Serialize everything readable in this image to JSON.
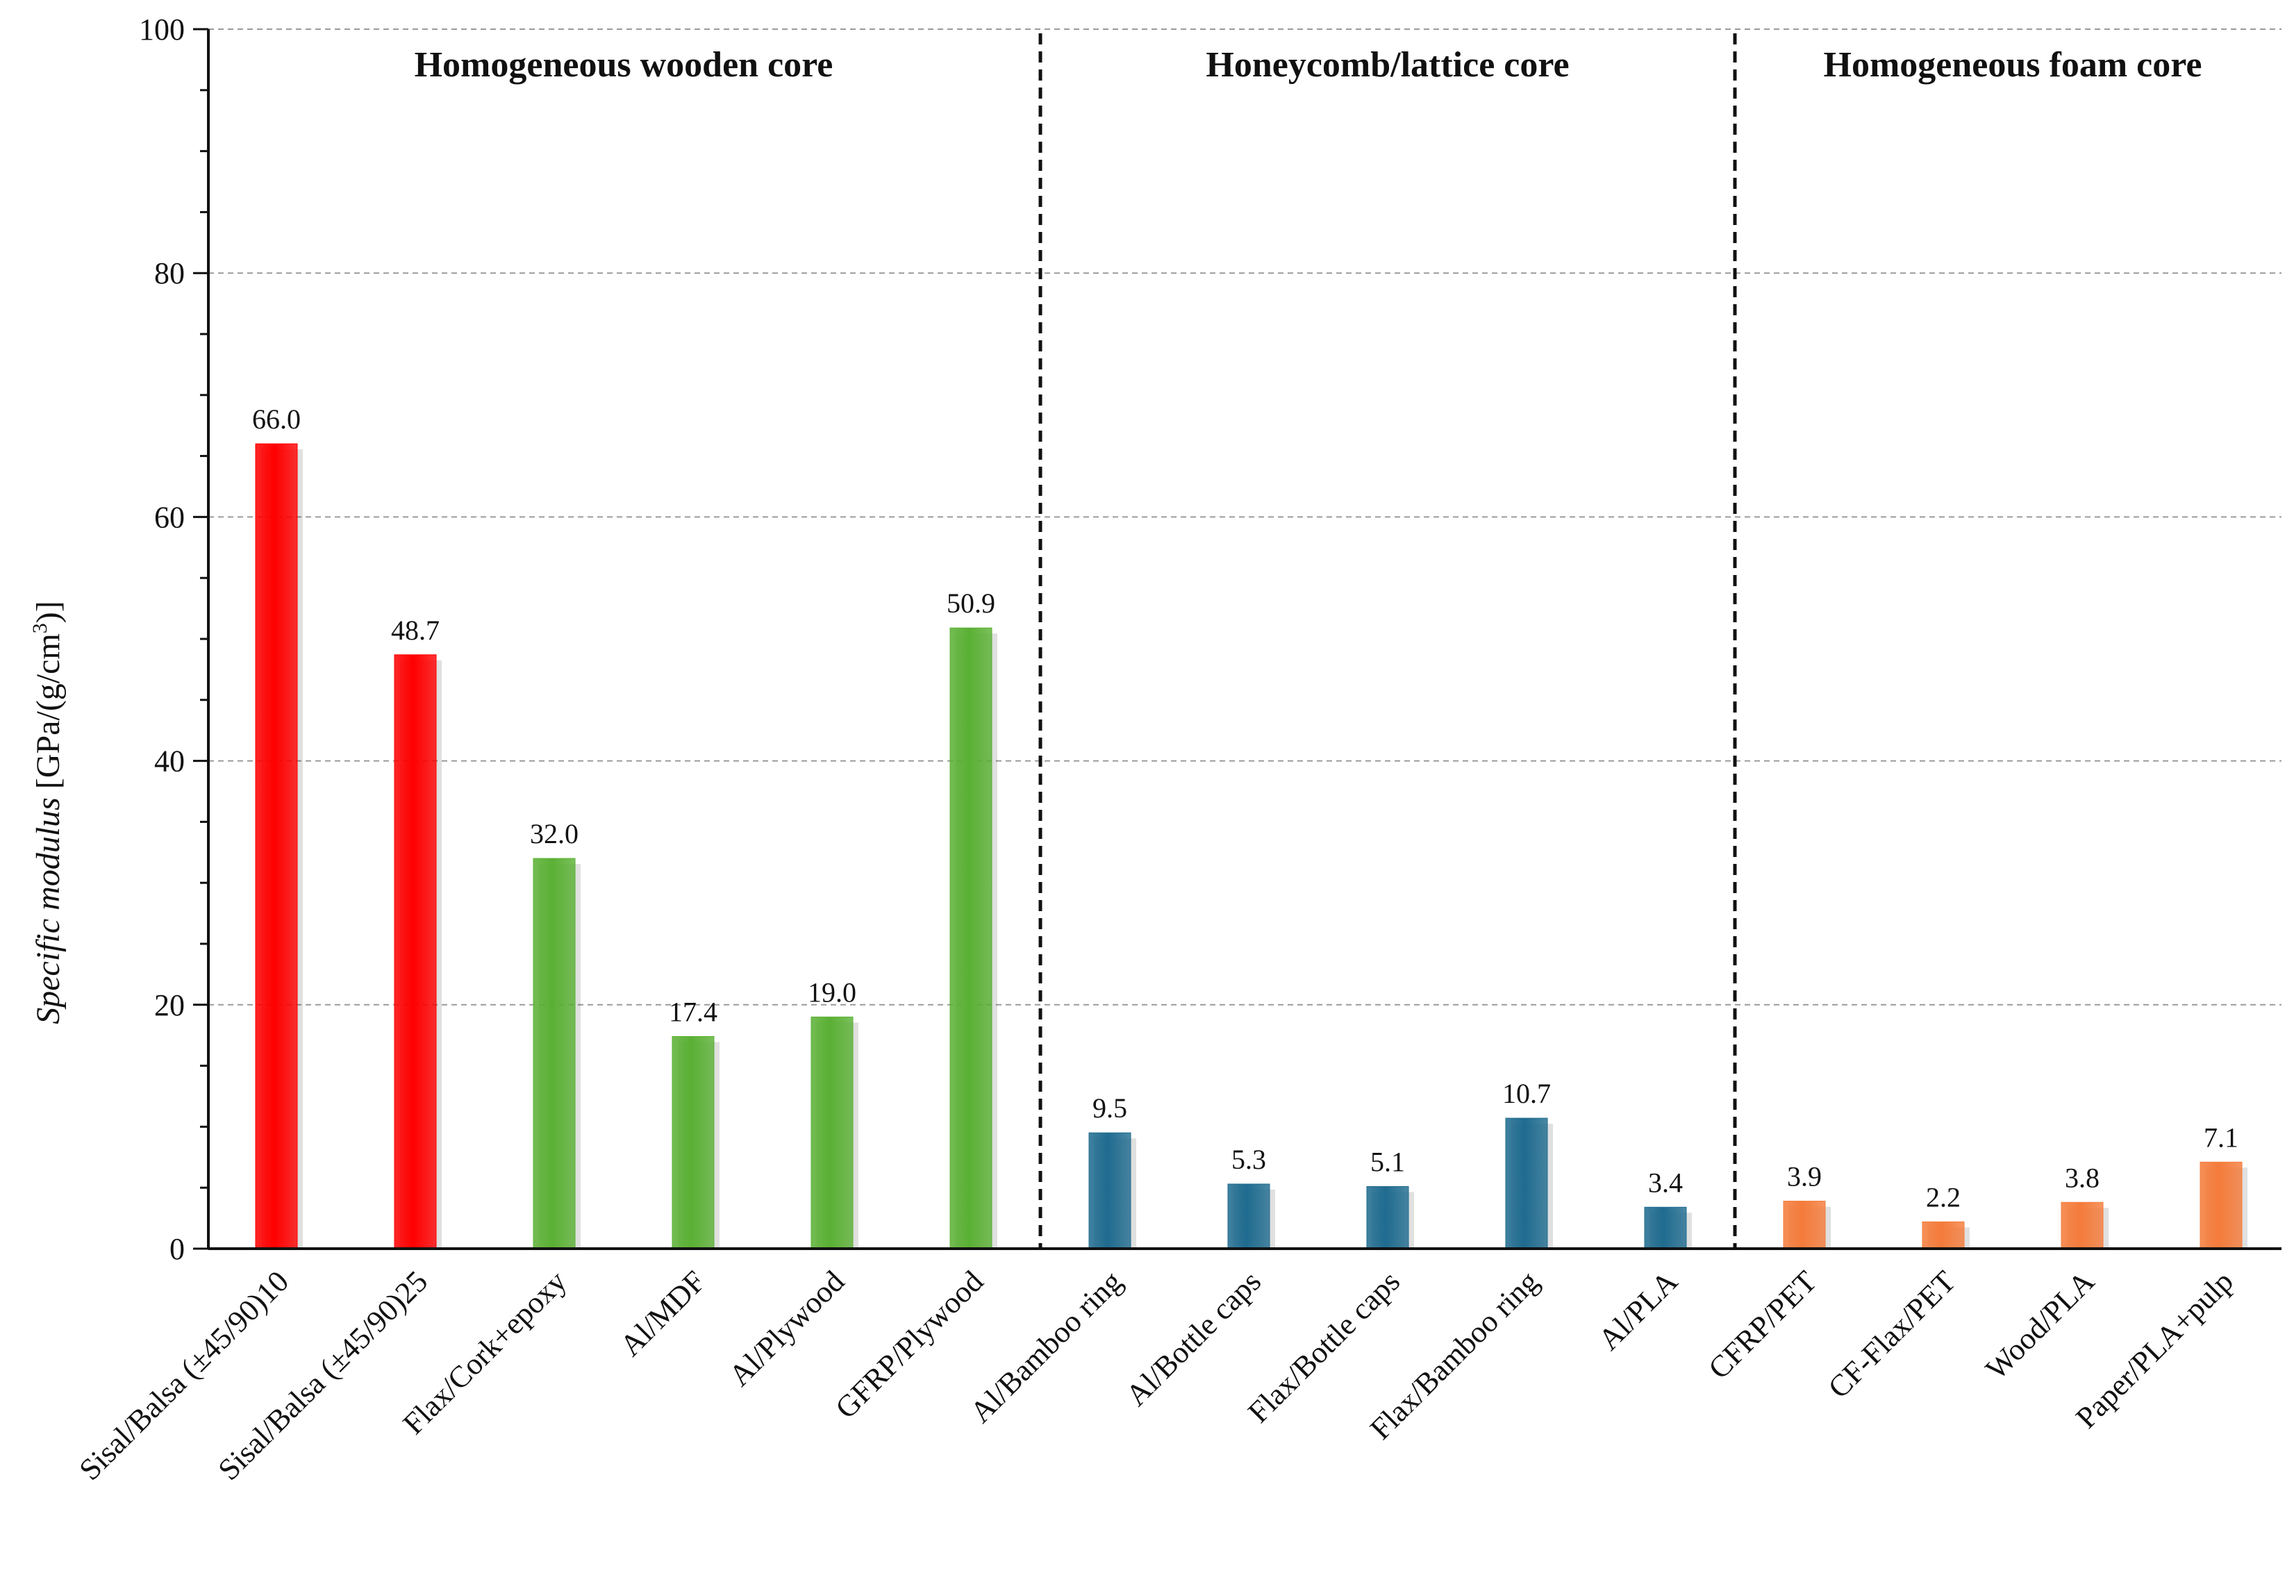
{
  "chart_data": {
    "type": "bar",
    "ylabel_italic": "Specific modulus",
    "ylabel_unit_prefix": "[GPa/(g/cm",
    "ylabel_unit_sup": "3",
    "ylabel_unit_suffix": ")]",
    "ylim": [
      0,
      100
    ],
    "y_ticks": [
      0,
      20,
      40,
      60,
      80,
      100
    ],
    "grid": true,
    "categories": [
      "Sisal/Balsa (±45/90)10",
      "Sisal/Balsa (±45/90)25",
      "Flax/Cork+epoxy",
      "Al/MDF",
      "Al/Plywood",
      "GFRP/Plywood",
      "Al/Bamboo ring",
      "Al/Bottle caps",
      "Flax/Bottle caps",
      "Flax/Bamboo ring",
      "Al/PLA",
      "CFRP/PET",
      "CF-Flax/PET",
      "Wood/PLA",
      "Paper/PLA+pulp"
    ],
    "values": [
      66.0,
      48.7,
      32.0,
      17.4,
      19.0,
      50.9,
      9.5,
      5.3,
      5.1,
      10.7,
      3.4,
      3.9,
      2.2,
      3.8,
      7.1
    ],
    "value_labels": [
      "66.0",
      "48.7",
      "32.0",
      "17.4",
      "19.0",
      "50.9",
      "9.5",
      "5.3",
      "5.1",
      "10.7",
      "3.4",
      "3.9",
      "2.2",
      "3.8",
      "7.1"
    ],
    "colors": [
      "#ff0000",
      "#ff0000",
      "#5ab034",
      "#5ab034",
      "#5ab034",
      "#5ab034",
      "#1f6b8f",
      "#1f6b8f",
      "#1f6b8f",
      "#1f6b8f",
      "#1f6b8f",
      "#f47b3a",
      "#f47b3a",
      "#f47b3a",
      "#f47b3a"
    ],
    "groups": [
      {
        "label": "Homogeneous wooden core",
        "start": 0,
        "end": 5
      },
      {
        "label": "Honeycomb/lattice core",
        "start": 6,
        "end": 10
      },
      {
        "label": "Homogeneous foam core",
        "start": 11,
        "end": 14
      }
    ]
  }
}
